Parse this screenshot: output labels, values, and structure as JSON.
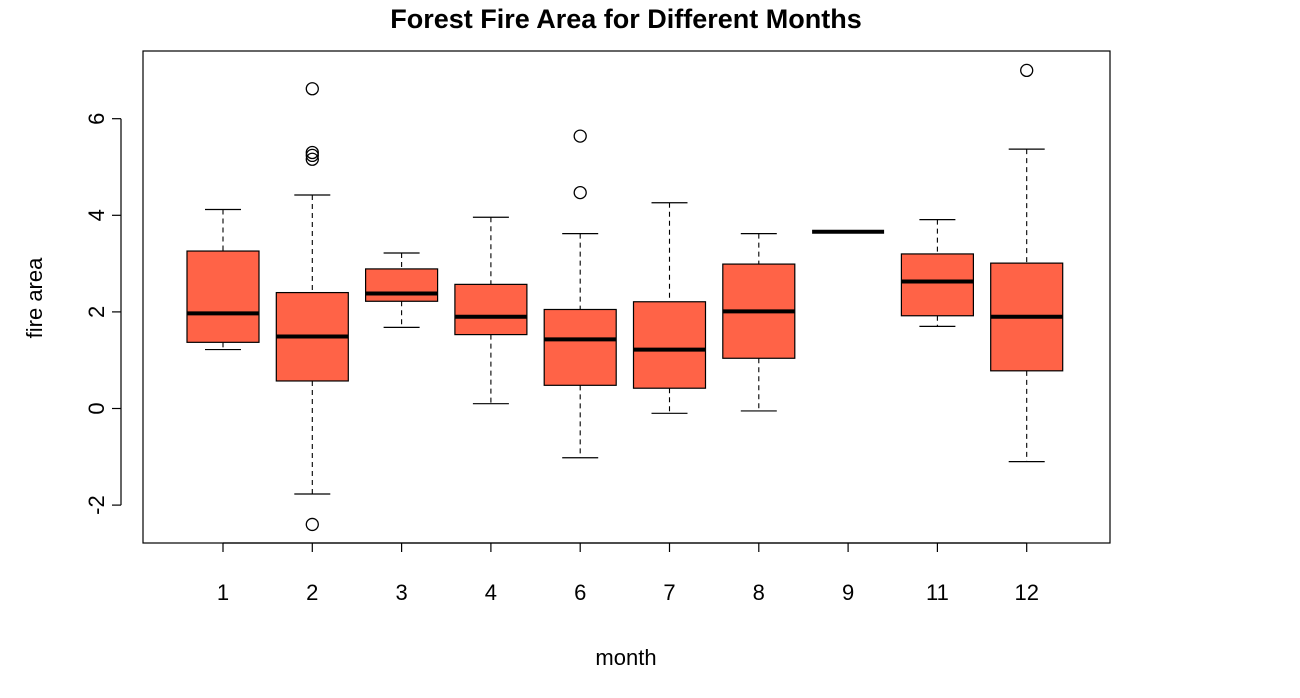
{
  "chart_data": {
    "type": "boxplot",
    "title": "Forest Fire Area for Different Months",
    "xlabel": "month",
    "ylabel": "fire area",
    "ylim": [
      -2.8,
      7.3
    ],
    "yticks": [
      -2,
      0,
      2,
      4,
      6
    ],
    "grid": false,
    "box_color": "#FF6347",
    "categories": [
      "1",
      "2",
      "3",
      "4",
      "6",
      "7",
      "8",
      "9",
      "11",
      "12"
    ],
    "boxes": [
      {
        "category": "1",
        "whisker_low": 1.22,
        "q1": 1.37,
        "median": 1.97,
        "q3": 3.26,
        "whisker_high": 4.12,
        "outliers": []
      },
      {
        "category": "2",
        "whisker_low": -1.77,
        "q1": 0.57,
        "median": 1.49,
        "q3": 2.4,
        "whisker_high": 4.42,
        "outliers": [
          6.62,
          5.3,
          5.24,
          5.16,
          -2.4
        ]
      },
      {
        "category": "3",
        "whisker_low": 1.68,
        "q1": 2.22,
        "median": 2.38,
        "q3": 2.89,
        "whisker_high": 3.22,
        "outliers": []
      },
      {
        "category": "4",
        "whisker_low": 0.1,
        "q1": 1.53,
        "median": 1.9,
        "q3": 2.57,
        "whisker_high": 3.96,
        "outliers": []
      },
      {
        "category": "6",
        "whisker_low": -1.02,
        "q1": 0.48,
        "median": 1.43,
        "q3": 2.05,
        "whisker_high": 3.62,
        "outliers": [
          5.64,
          4.47
        ]
      },
      {
        "category": "7",
        "whisker_low": -0.1,
        "q1": 0.42,
        "median": 1.22,
        "q3": 2.21,
        "whisker_high": 4.26,
        "outliers": []
      },
      {
        "category": "8",
        "whisker_low": -0.05,
        "q1": 1.04,
        "median": 2.01,
        "q3": 2.99,
        "whisker_high": 3.62,
        "outliers": []
      },
      {
        "category": "9",
        "whisker_low": 3.66,
        "q1": 3.66,
        "median": 3.66,
        "q3": 3.66,
        "whisker_high": 3.66,
        "outliers": []
      },
      {
        "category": "11",
        "whisker_low": 1.7,
        "q1": 1.92,
        "median": 2.63,
        "q3": 3.2,
        "whisker_high": 3.91,
        "outliers": []
      },
      {
        "category": "12",
        "whisker_low": -1.1,
        "q1": 0.78,
        "median": 1.9,
        "q3": 3.01,
        "whisker_high": 5.37,
        "outliers": [
          7.0
        ]
      }
    ]
  }
}
